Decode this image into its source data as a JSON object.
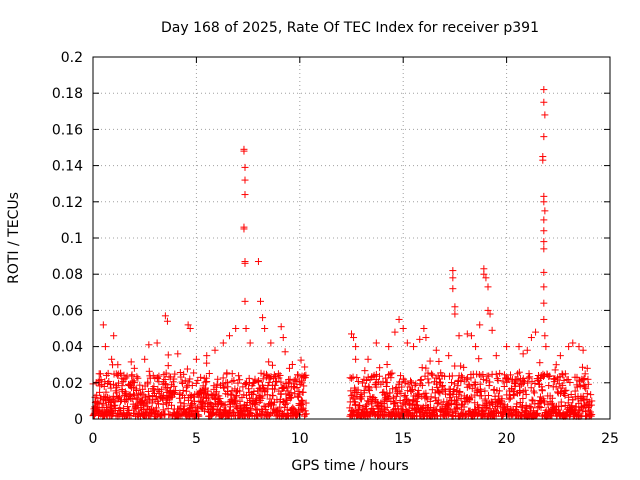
{
  "chart_data": {
    "type": "scatter",
    "title": "Day 168 of 2025, Rate Of TEC Index for receiver p391",
    "xlabel": "GPS time / hours",
    "ylabel": "ROTI / TECUs",
    "xlim": [
      0,
      25
    ],
    "ylim": [
      0,
      0.2
    ],
    "xticks": [
      0,
      5,
      10,
      15,
      20,
      25
    ],
    "xtick_labels": [
      "0",
      "5",
      "10",
      "15",
      "20",
      "25"
    ],
    "yticks": [
      0,
      0.02,
      0.04,
      0.06,
      0.08,
      0.1,
      0.12,
      0.14,
      0.16,
      0.18,
      0.2
    ],
    "ytick_labels": [
      "0",
      "0.02",
      "0.04",
      "0.06",
      "0.08",
      "0.1",
      "0.12",
      "0.14",
      "0.16",
      "0.18",
      "0.2"
    ],
    "grid": true,
    "marker": "+",
    "series": [
      {
        "name": "ROTI",
        "color": "#ff0000",
        "segments": [
          {
            "start": 0.0,
            "end": 10.3
          },
          {
            "start": 12.4,
            "end": 24.1
          }
        ],
        "points": [
          [
            0.1,
            0.012
          ],
          [
            0.3,
            0.025
          ],
          [
            0.5,
            0.052
          ],
          [
            0.6,
            0.04
          ],
          [
            0.9,
            0.033
          ],
          [
            1.0,
            0.046
          ],
          [
            1.2,
            0.03
          ],
          [
            1.5,
            0.022
          ],
          [
            2.0,
            0.028
          ],
          [
            2.5,
            0.033
          ],
          [
            2.7,
            0.041
          ],
          [
            3.1,
            0.042
          ],
          [
            3.5,
            0.057
          ],
          [
            3.6,
            0.054
          ],
          [
            4.1,
            0.036
          ],
          [
            4.6,
            0.052
          ],
          [
            4.7,
            0.05
          ],
          [
            5.0,
            0.033
          ],
          [
            5.5,
            0.035
          ],
          [
            5.9,
            0.038
          ],
          [
            6.3,
            0.042
          ],
          [
            6.6,
            0.046
          ],
          [
            6.9,
            0.05
          ],
          [
            7.3,
            0.149
          ],
          [
            7.3,
            0.148
          ],
          [
            7.35,
            0.139
          ],
          [
            7.35,
            0.132
          ],
          [
            7.35,
            0.124
          ],
          [
            7.3,
            0.106
          ],
          [
            7.3,
            0.105
          ],
          [
            7.35,
            0.087
          ],
          [
            7.35,
            0.086
          ],
          [
            7.35,
            0.065
          ],
          [
            7.4,
            0.05
          ],
          [
            7.6,
            0.042
          ],
          [
            8.0,
            0.087
          ],
          [
            8.1,
            0.065
          ],
          [
            8.2,
            0.056
          ],
          [
            8.3,
            0.05
          ],
          [
            8.6,
            0.042
          ],
          [
            9.1,
            0.051
          ],
          [
            9.2,
            0.045
          ],
          [
            9.5,
            0.028
          ],
          [
            9.8,
            0.022
          ],
          [
            10.1,
            0.02
          ],
          [
            12.5,
            0.047
          ],
          [
            12.6,
            0.045
          ],
          [
            12.7,
            0.04
          ],
          [
            12.7,
            0.033
          ],
          [
            13.3,
            0.033
          ],
          [
            13.7,
            0.042
          ],
          [
            14.3,
            0.04
          ],
          [
            14.6,
            0.048
          ],
          [
            14.8,
            0.055
          ],
          [
            15.0,
            0.05
          ],
          [
            15.2,
            0.042
          ],
          [
            15.5,
            0.04
          ],
          [
            15.8,
            0.044
          ],
          [
            16.0,
            0.05
          ],
          [
            16.1,
            0.045
          ],
          [
            16.3,
            0.032
          ],
          [
            16.6,
            0.038
          ],
          [
            17.2,
            0.035
          ],
          [
            17.4,
            0.082
          ],
          [
            17.4,
            0.078
          ],
          [
            17.4,
            0.072
          ],
          [
            17.5,
            0.062
          ],
          [
            17.5,
            0.058
          ],
          [
            17.7,
            0.046
          ],
          [
            18.1,
            0.047
          ],
          [
            18.3,
            0.046
          ],
          [
            18.5,
            0.04
          ],
          [
            18.7,
            0.052
          ],
          [
            18.9,
            0.083
          ],
          [
            18.9,
            0.08
          ],
          [
            19.0,
            0.078
          ],
          [
            19.1,
            0.073
          ],
          [
            19.1,
            0.06
          ],
          [
            19.2,
            0.058
          ],
          [
            19.3,
            0.049
          ],
          [
            19.5,
            0.035
          ],
          [
            20.0,
            0.04
          ],
          [
            20.6,
            0.04
          ],
          [
            20.8,
            0.036
          ],
          [
            21.0,
            0.038
          ],
          [
            21.2,
            0.045
          ],
          [
            21.4,
            0.048
          ],
          [
            21.8,
            0.182
          ],
          [
            21.8,
            0.175
          ],
          [
            21.85,
            0.168
          ],
          [
            21.8,
            0.156
          ],
          [
            21.75,
            0.145
          ],
          [
            21.75,
            0.143
          ],
          [
            21.8,
            0.123
          ],
          [
            21.8,
            0.12
          ],
          [
            21.85,
            0.115
          ],
          [
            21.8,
            0.11
          ],
          [
            21.8,
            0.104
          ],
          [
            21.8,
            0.098
          ],
          [
            21.8,
            0.094
          ],
          [
            21.8,
            0.081
          ],
          [
            21.8,
            0.073
          ],
          [
            21.8,
            0.064
          ],
          [
            21.8,
            0.055
          ],
          [
            21.85,
            0.046
          ],
          [
            21.9,
            0.04
          ],
          [
            22.4,
            0.03
          ],
          [
            22.6,
            0.035
          ],
          [
            23.0,
            0.04
          ],
          [
            23.2,
            0.042
          ],
          [
            23.5,
            0.04
          ],
          [
            23.7,
            0.038
          ],
          [
            23.9,
            0.028
          ]
        ]
      }
    ]
  }
}
